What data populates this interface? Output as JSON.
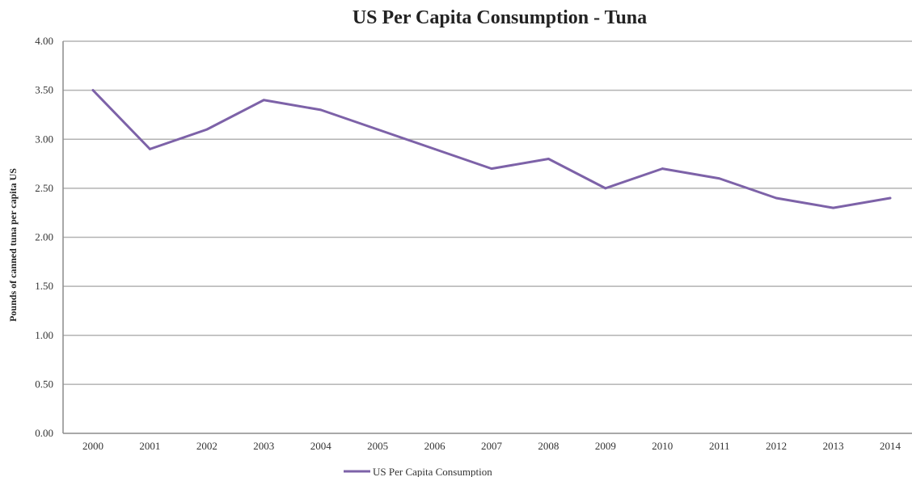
{
  "colors": {
    "series": "#7d62a8",
    "grid": "#b3b3b3"
  },
  "chart_data": {
    "type": "line",
    "title": "US Per Capita Consumption - Tuna",
    "xlabel": "",
    "ylabel": "Pounds of canned tuna per capita US",
    "ylim": [
      0,
      4
    ],
    "yticks": [
      "0.00",
      "0.50",
      "1.00",
      "1.50",
      "2.00",
      "2.50",
      "3.00",
      "3.50",
      "4.00"
    ],
    "categories": [
      "2000",
      "2001",
      "2002",
      "2003",
      "2004",
      "2005",
      "2006",
      "2007",
      "2008",
      "2009",
      "2010",
      "2011",
      "2012",
      "2013",
      "2014"
    ],
    "grid": true,
    "legend_position": "bottom",
    "series": [
      {
        "name": "US Per Capita Consumption",
        "values": [
          3.5,
          2.9,
          3.1,
          3.4,
          3.3,
          3.1,
          2.9,
          2.7,
          2.8,
          2.5,
          2.7,
          2.6,
          2.4,
          2.3,
          2.4
        ]
      }
    ]
  }
}
